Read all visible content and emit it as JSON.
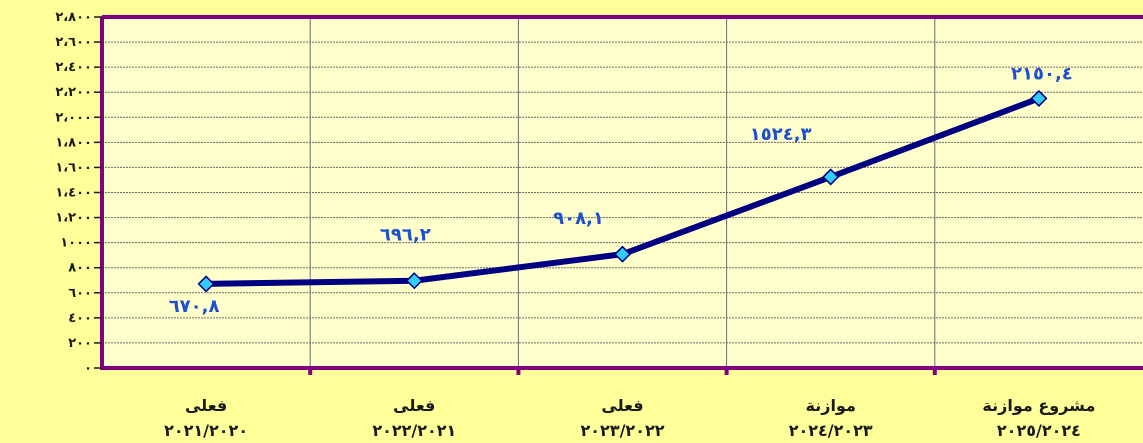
{
  "chart_data": {
    "type": "line",
    "categories": [
      [
        "فعلى",
        "٢٠٢١/٢٠٢٠"
      ],
      [
        "فعلى",
        "٢٠٢٢/٢٠٢١"
      ],
      [
        "فعلى",
        "٢٠٢٣/٢٠٢٢"
      ],
      [
        "موازنة",
        "٢٠٢٤/٢٠٢٣"
      ],
      [
        "مشروع موازنة",
        "٢٠٢٥/٢٠٢٤"
      ]
    ],
    "values": [
      670.8,
      696.2,
      908.1,
      1524.3,
      2150.4
    ],
    "data_labels": [
      "٦٧٠,٨",
      "٦٩٦,٢",
      "٩٠٨,١",
      "١٥٢٤,٣",
      "٢١٥٠,٤"
    ],
    "ylim": [
      0,
      2800
    ],
    "yticks": [
      0,
      200,
      400,
      600,
      800,
      1000,
      1200,
      1400,
      1600,
      1800,
      2000,
      2200,
      2400,
      2600,
      2800
    ],
    "ytick_labels": [
      "٠",
      "٢٠٠",
      "٤٠٠",
      "٦٠٠",
      "٨٠٠",
      "١٠٠٠",
      "١،٢٠٠",
      "١،٤٠٠",
      "١،٦٠٠",
      "١،٨٠٠",
      "٢،٠٠٠",
      "٢،٢٠٠",
      "٢،٤٠٠",
      "٢،٦٠٠",
      "٢،٨٠٠"
    ],
    "grid": true,
    "colors": {
      "page_background": "#FFFF99",
      "plot_background": "#FFFFCC",
      "frame": "#800080",
      "line": "#000080",
      "marker_fill": "#33CCFF",
      "label_text": "#1F4FD1"
    }
  }
}
